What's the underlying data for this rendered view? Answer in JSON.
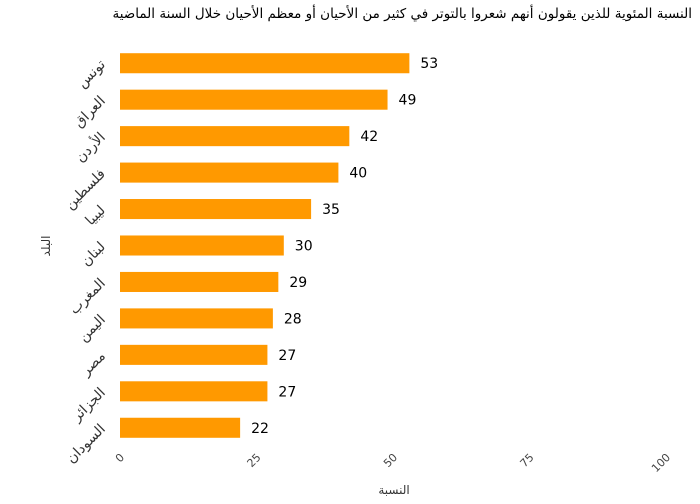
{
  "chart_data": {
    "type": "bar",
    "orientation": "horizontal",
    "title": "النسبة المئوية للذين يقولون أنهم شعروا بالتوتر في كثير من الأحيان أو معظم الأحيان خلال السنة الماضية",
    "xlabel": "النسبة",
    "ylabel": "البلد",
    "xlim": [
      0,
      100
    ],
    "xticks": [
      0,
      25,
      50,
      75,
      100
    ],
    "grid": false,
    "legend": "none",
    "bar_color": "#FF9900",
    "categories": [
      "تونس",
      "العراق",
      "الأردن",
      "فلسطين",
      "ليبيا",
      "لبنان",
      "المغرب",
      "اليمن",
      "مصر",
      "الجزائر",
      "السودان"
    ],
    "values": [
      53,
      49,
      42,
      40,
      35,
      30,
      29,
      28,
      27,
      27,
      22
    ]
  }
}
